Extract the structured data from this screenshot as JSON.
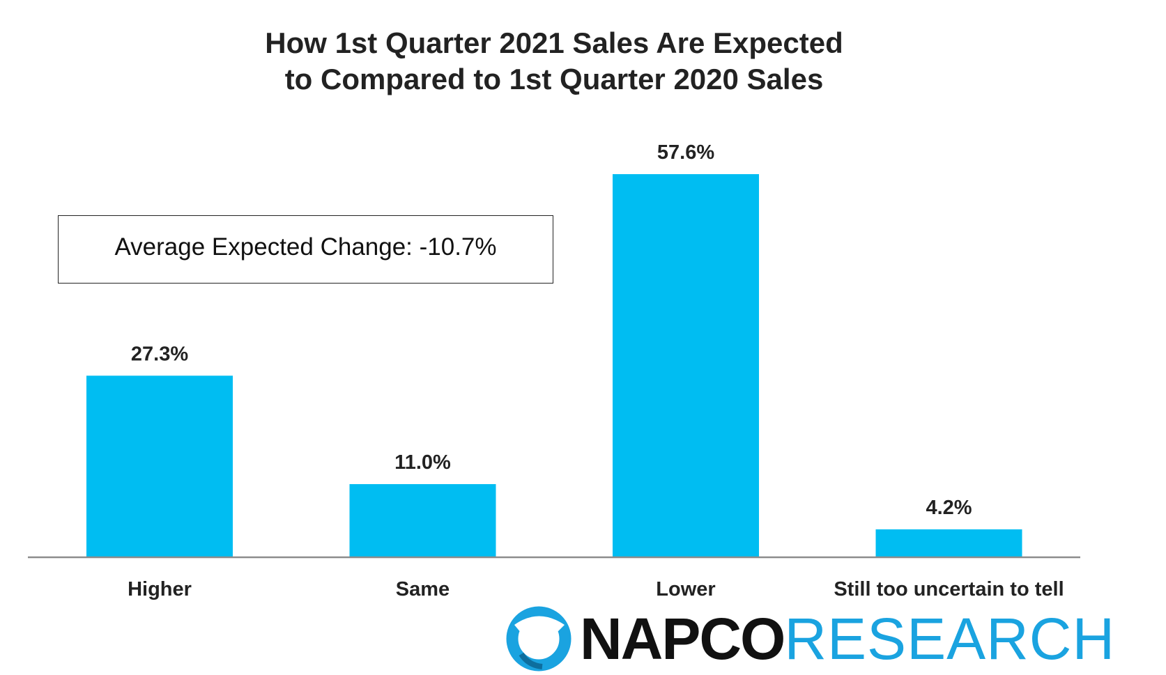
{
  "chart_data": {
    "type": "bar",
    "title_lines": [
      "How 1st Quarter 2021 Sales Are Expected",
      "to Compared to 1st Quarter 2020 Sales"
    ],
    "categories": [
      "Higher",
      "Same",
      "Lower",
      "Still too uncertain to tell"
    ],
    "values": [
      27.3,
      11.0,
      57.6,
      4.2
    ],
    "value_labels": [
      "27.3%",
      "11.0%",
      "57.6%",
      "4.2%"
    ],
    "ylim": [
      0,
      57.6
    ],
    "grid": false,
    "bar_color": "#00bdf2",
    "axis_color": "#8c8c8c"
  },
  "annotation": {
    "text": "Average Expected Change: -10.7%"
  },
  "logo": {
    "napco": "NAPCO",
    "research": "RESEARCH",
    "mark_color": "#1aa3e0"
  }
}
